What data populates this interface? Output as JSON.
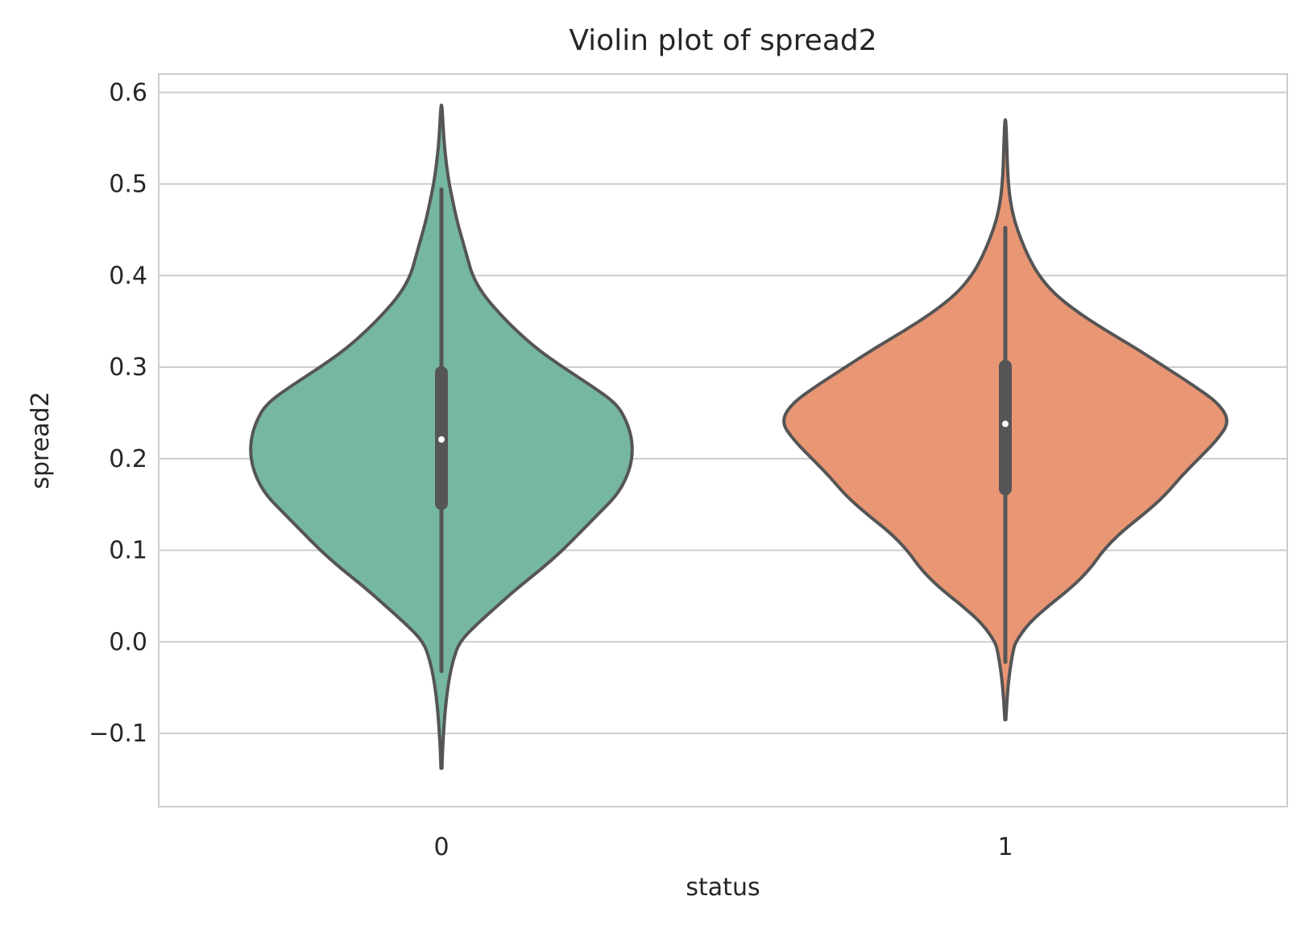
{
  "chart_data": {
    "type": "violin",
    "title": "Violin plot of spread2",
    "xlabel": "status",
    "ylabel": "spread2",
    "ylim": [
      -0.18,
      0.62
    ],
    "yticks": [
      {
        "value": -0.1,
        "label": "−0.1"
      },
      {
        "value": 0.0,
        "label": "0.0"
      },
      {
        "value": 0.1,
        "label": "0.1"
      },
      {
        "value": 0.2,
        "label": "0.2"
      },
      {
        "value": 0.3,
        "label": "0.3"
      },
      {
        "value": 0.4,
        "label": "0.4"
      },
      {
        "value": 0.5,
        "label": "0.5"
      },
      {
        "value": 0.6,
        "label": "0.6"
      }
    ],
    "grid": "horizontal",
    "categories": [
      "0",
      "1"
    ],
    "colors": {
      "0": "#76b7a2",
      "1": "#e99674",
      "outline": "#555555",
      "grid": "#cccccc",
      "median": "#ffffff"
    },
    "series": [
      {
        "category": "0",
        "min": -0.032,
        "max": 0.494,
        "q1": 0.151,
        "median": 0.221,
        "q3": 0.294,
        "kde_range": [
          -0.138,
          0.586
        ],
        "density": [
          [
            -0.138,
            0.002
          ],
          [
            -0.12,
            0.004
          ],
          [
            -0.1,
            0.008
          ],
          [
            -0.08,
            0.013
          ],
          [
            -0.06,
            0.02
          ],
          [
            -0.04,
            0.03
          ],
          [
            -0.02,
            0.045
          ],
          [
            0.0,
            0.07
          ],
          [
            0.02,
            0.14
          ],
          [
            0.04,
            0.22
          ],
          [
            0.06,
            0.3
          ],
          [
            0.08,
            0.39
          ],
          [
            0.1,
            0.47
          ],
          [
            0.12,
            0.54
          ],
          [
            0.14,
            0.61
          ],
          [
            0.16,
            0.68
          ],
          [
            0.18,
            0.72
          ],
          [
            0.2,
            0.74
          ],
          [
            0.22,
            0.74
          ],
          [
            0.24,
            0.72
          ],
          [
            0.26,
            0.68
          ],
          [
            0.28,
            0.58
          ],
          [
            0.3,
            0.47
          ],
          [
            0.32,
            0.37
          ],
          [
            0.34,
            0.29
          ],
          [
            0.36,
            0.22
          ],
          [
            0.38,
            0.16
          ],
          [
            0.4,
            0.12
          ],
          [
            0.42,
            0.1
          ],
          [
            0.44,
            0.08
          ],
          [
            0.46,
            0.06
          ],
          [
            0.48,
            0.045
          ],
          [
            0.5,
            0.03
          ],
          [
            0.52,
            0.02
          ],
          [
            0.54,
            0.012
          ],
          [
            0.56,
            0.007
          ],
          [
            0.586,
            0.002
          ]
        ]
      },
      {
        "category": "1",
        "min": -0.022,
        "max": 0.452,
        "q1": 0.167,
        "median": 0.238,
        "q3": 0.301,
        "kde_range": [
          -0.085,
          0.57
        ],
        "density": [
          [
            -0.085,
            0.002
          ],
          [
            -0.07,
            0.005
          ],
          [
            -0.05,
            0.01
          ],
          [
            -0.03,
            0.018
          ],
          [
            -0.01,
            0.03
          ],
          [
            0.0,
            0.04
          ],
          [
            0.02,
            0.09
          ],
          [
            0.04,
            0.17
          ],
          [
            0.06,
            0.26
          ],
          [
            0.08,
            0.33
          ],
          [
            0.1,
            0.38
          ],
          [
            0.12,
            0.45
          ],
          [
            0.14,
            0.54
          ],
          [
            0.16,
            0.62
          ],
          [
            0.18,
            0.68
          ],
          [
            0.2,
            0.75
          ],
          [
            0.22,
            0.82
          ],
          [
            0.24,
            0.87
          ],
          [
            0.26,
            0.83
          ],
          [
            0.28,
            0.73
          ],
          [
            0.3,
            0.62
          ],
          [
            0.32,
            0.51
          ],
          [
            0.34,
            0.39
          ],
          [
            0.36,
            0.28
          ],
          [
            0.38,
            0.19
          ],
          [
            0.4,
            0.13
          ],
          [
            0.42,
            0.09
          ],
          [
            0.44,
            0.06
          ],
          [
            0.46,
            0.035
          ],
          [
            0.48,
            0.02
          ],
          [
            0.5,
            0.012
          ],
          [
            0.52,
            0.008
          ],
          [
            0.54,
            0.006
          ],
          [
            0.57,
            0.002
          ]
        ]
      }
    ]
  }
}
